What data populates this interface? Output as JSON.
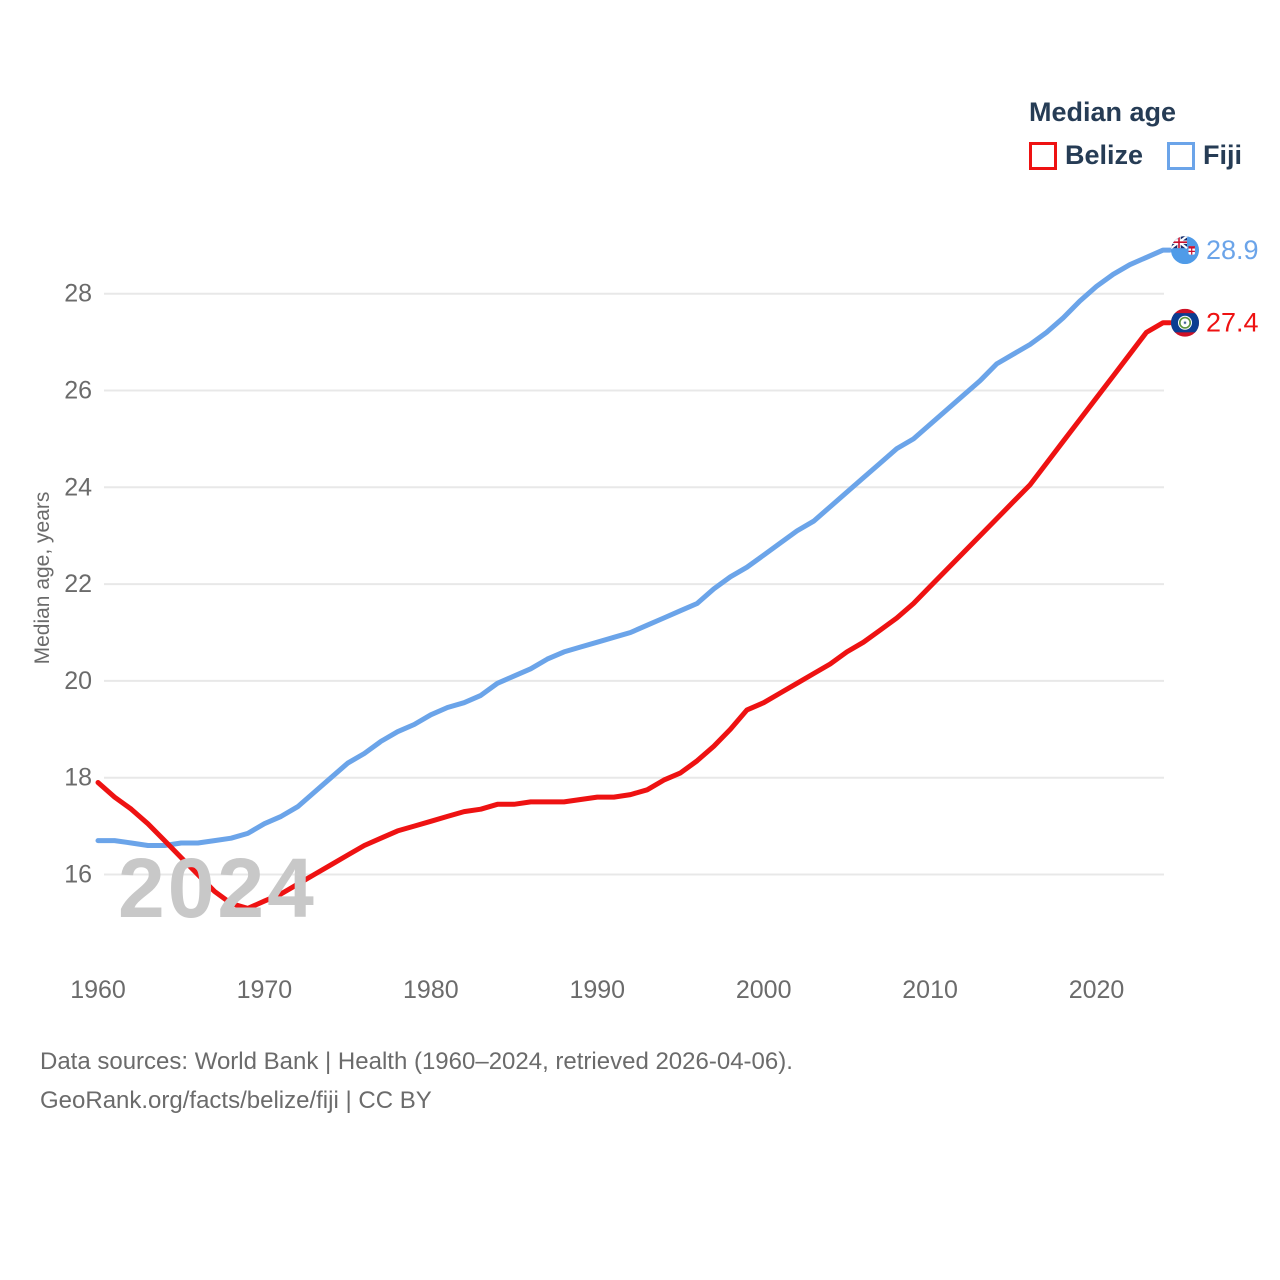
{
  "legend": {
    "title": "Median age",
    "items": [
      {
        "label": "Belize",
        "color": "#ee1212"
      },
      {
        "label": "Fiji",
        "color": "#6ba4e9"
      }
    ]
  },
  "watermark": "2024",
  "footer": {
    "line1": "Data sources: World Bank | Health (1960–2024, retrieved 2026-04-06).",
    "line2": "GeoRank.org/facts/belize/fiji | CC BY"
  },
  "chart_data": {
    "type": "line",
    "title": "Median age",
    "xlabel": "",
    "ylabel": "Median age, years",
    "x_start": 1960,
    "x_end": 2024,
    "x_step": 1,
    "xticks": [
      1960,
      1970,
      1980,
      1990,
      2000,
      2010,
      2020
    ],
    "yticks": [
      16,
      18,
      20,
      22,
      24,
      26,
      28
    ],
    "ylim": [
      14.8,
      29.6
    ],
    "grid": "horizontal",
    "legend_position": "top-right",
    "series": [
      {
        "name": "Belize",
        "color": "#ee1212",
        "end_label": "27.4",
        "end_value": 27.4,
        "flag": "belize",
        "values": [
          17.9,
          17.6,
          17.35,
          17.05,
          16.7,
          16.35,
          16.0,
          15.65,
          15.4,
          15.3,
          15.45,
          15.6,
          15.8,
          16.0,
          16.2,
          16.4,
          16.6,
          16.75,
          16.9,
          17.0,
          17.1,
          17.2,
          17.3,
          17.35,
          17.45,
          17.45,
          17.5,
          17.5,
          17.5,
          17.55,
          17.6,
          17.6,
          17.65,
          17.75,
          17.95,
          18.1,
          18.35,
          18.65,
          19.0,
          19.4,
          19.55,
          19.75,
          19.95,
          20.15,
          20.35,
          20.6,
          20.8,
          21.05,
          21.3,
          21.6,
          21.95,
          22.3,
          22.65,
          23.0,
          23.35,
          23.7,
          24.05,
          24.5,
          24.95,
          25.4,
          25.85,
          26.3,
          26.75,
          27.2,
          27.4
        ]
      },
      {
        "name": "Fiji",
        "color": "#6ba4e9",
        "end_label": "28.9",
        "end_value": 28.9,
        "flag": "fiji",
        "values": [
          16.7,
          16.7,
          16.65,
          16.6,
          16.6,
          16.65,
          16.65,
          16.7,
          16.75,
          16.85,
          17.05,
          17.2,
          17.4,
          17.7,
          18.0,
          18.3,
          18.5,
          18.75,
          18.95,
          19.1,
          19.3,
          19.45,
          19.55,
          19.7,
          19.95,
          20.1,
          20.25,
          20.45,
          20.6,
          20.7,
          20.8,
          20.9,
          21.0,
          21.15,
          21.3,
          21.45,
          21.6,
          21.9,
          22.15,
          22.35,
          22.6,
          22.85,
          23.1,
          23.3,
          23.6,
          23.9,
          24.2,
          24.5,
          24.8,
          25.0,
          25.3,
          25.6,
          25.9,
          26.2,
          26.55,
          26.75,
          26.95,
          27.2,
          27.5,
          27.85,
          28.15,
          28.4,
          28.6,
          28.75,
          28.9
        ]
      }
    ]
  }
}
